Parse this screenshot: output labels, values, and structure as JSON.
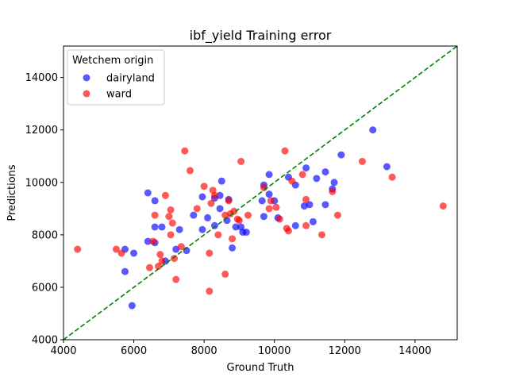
{
  "chart_data": {
    "type": "scatter",
    "title": "ibf_yield Training error",
    "xlabel": "Ground Truth",
    "ylabel": "Predictions",
    "xlim": [
      4000,
      15200
    ],
    "ylim": [
      4000,
      15200
    ],
    "xticks": [
      4000,
      6000,
      8000,
      10000,
      12000,
      14000
    ],
    "yticks": [
      4000,
      6000,
      8000,
      10000,
      12000,
      14000
    ],
    "grid": false,
    "legend": {
      "title": "Wetchem origin",
      "placement": "top-left"
    },
    "reference_line": {
      "type": "identity",
      "color": "#008000",
      "style": "dashed"
    },
    "series": [
      {
        "name": "dairyland",
        "color": "#0000ff",
        "points": [
          [
            5750,
            7450
          ],
          [
            5750,
            6600
          ],
          [
            5950,
            5300
          ],
          [
            6000,
            7300
          ],
          [
            6400,
            9600
          ],
          [
            6400,
            7750
          ],
          [
            6600,
            9300
          ],
          [
            6600,
            8300
          ],
          [
            6600,
            7700
          ],
          [
            6800,
            8300
          ],
          [
            6900,
            7000
          ],
          [
            7200,
            7450
          ],
          [
            7300,
            8200
          ],
          [
            7500,
            7400
          ],
          [
            7700,
            8750
          ],
          [
            7950,
            9450
          ],
          [
            7950,
            8200
          ],
          [
            8100,
            8650
          ],
          [
            8300,
            9400
          ],
          [
            8300,
            8350
          ],
          [
            8450,
            9000
          ],
          [
            8450,
            9500
          ],
          [
            8500,
            10050
          ],
          [
            8650,
            8550
          ],
          [
            8700,
            9350
          ],
          [
            8800,
            7500
          ],
          [
            8900,
            8300
          ],
          [
            9050,
            8300
          ],
          [
            9100,
            8100
          ],
          [
            9200,
            8100
          ],
          [
            9650,
            9300
          ],
          [
            9700,
            9900
          ],
          [
            9700,
            8700
          ],
          [
            9850,
            9550
          ],
          [
            9850,
            10300
          ],
          [
            10000,
            9300
          ],
          [
            10100,
            8650
          ],
          [
            10400,
            10200
          ],
          [
            10600,
            8350
          ],
          [
            10600,
            9900
          ],
          [
            10850,
            9100
          ],
          [
            10900,
            10550
          ],
          [
            11000,
            9150
          ],
          [
            11100,
            8500
          ],
          [
            11200,
            10150
          ],
          [
            11450,
            9150
          ],
          [
            11450,
            10400
          ],
          [
            11650,
            9750
          ],
          [
            11700,
            10000
          ],
          [
            11900,
            11050
          ],
          [
            12800,
            12000
          ],
          [
            13200,
            10600
          ]
        ]
      },
      {
        "name": "ward",
        "color": "#ff0000",
        "points": [
          [
            4400,
            7450
          ],
          [
            5500,
            7450
          ],
          [
            5650,
            7300
          ],
          [
            6450,
            6750
          ],
          [
            6550,
            7750
          ],
          [
            6600,
            8750
          ],
          [
            6700,
            6800
          ],
          [
            6750,
            7250
          ],
          [
            6800,
            7000
          ],
          [
            6900,
            9500
          ],
          [
            7000,
            8700
          ],
          [
            7050,
            8000
          ],
          [
            7050,
            8950
          ],
          [
            7100,
            8450
          ],
          [
            7150,
            7100
          ],
          [
            7200,
            6300
          ],
          [
            7350,
            7550
          ],
          [
            7450,
            11200
          ],
          [
            7600,
            10450
          ],
          [
            7800,
            9000
          ],
          [
            8000,
            9850
          ],
          [
            8150,
            7300
          ],
          [
            8150,
            5850
          ],
          [
            8200,
            9200
          ],
          [
            8250,
            9700
          ],
          [
            8300,
            9500
          ],
          [
            8400,
            8000
          ],
          [
            8600,
            6500
          ],
          [
            8600,
            8750
          ],
          [
            8700,
            9300
          ],
          [
            8750,
            8800
          ],
          [
            8800,
            7850
          ],
          [
            8850,
            8900
          ],
          [
            8950,
            8600
          ],
          [
            9000,
            8550
          ],
          [
            9050,
            10800
          ],
          [
            9250,
            8750
          ],
          [
            9700,
            9800
          ],
          [
            9850,
            9000
          ],
          [
            9900,
            9300
          ],
          [
            10050,
            9050
          ],
          [
            10150,
            8600
          ],
          [
            10300,
            11200
          ],
          [
            10350,
            8250
          ],
          [
            10400,
            8150
          ],
          [
            10500,
            10050
          ],
          [
            10800,
            10300
          ],
          [
            10900,
            9350
          ],
          [
            10900,
            8350
          ],
          [
            11350,
            8000
          ],
          [
            11650,
            9650
          ],
          [
            11800,
            8750
          ],
          [
            12500,
            10800
          ],
          [
            13350,
            10200
          ],
          [
            14800,
            9100
          ]
        ]
      }
    ]
  }
}
